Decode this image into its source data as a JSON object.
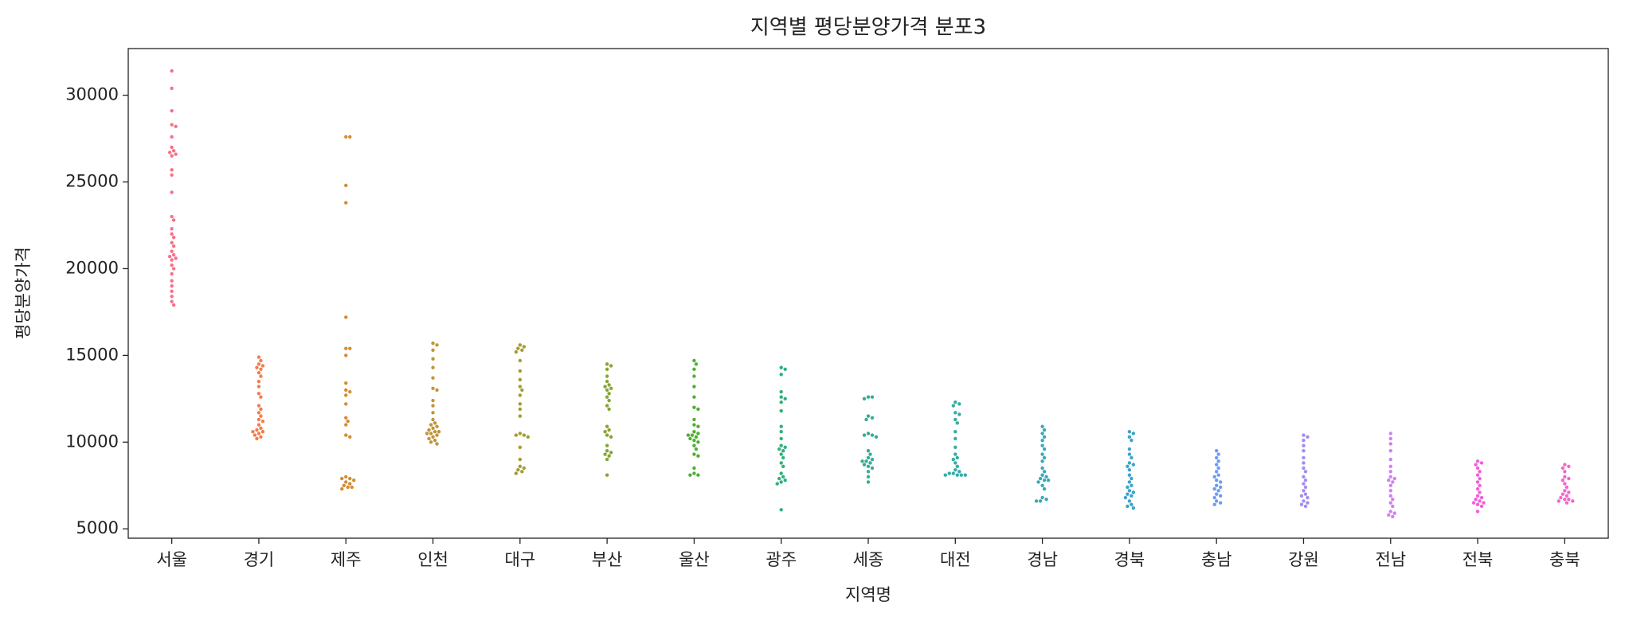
{
  "chart_data": {
    "type": "swarm",
    "title": "지역별 평당분양가격 분포3",
    "x_label": "지역명",
    "y_label": "평당분양가격",
    "categories": [
      "서울",
      "경기",
      "제주",
      "인천",
      "대구",
      "부산",
      "울산",
      "광주",
      "세종",
      "대전",
      "경남",
      "경북",
      "충남",
      "강원",
      "전남",
      "전북",
      "충북"
    ],
    "colors": [
      "#f77189",
      "#f27d4a",
      "#d58c32",
      "#c0953a",
      "#a59c31",
      "#86a531",
      "#4fb031",
      "#33b07a",
      "#35ad95",
      "#36ada4",
      "#38a9b9",
      "#3ba3ce",
      "#6e9bf4",
      "#a48cf4",
      "#d27ff0",
      "#f15fd8",
      "#f565cc"
    ],
    "values": [
      [
        31400,
        30400,
        29100,
        28300,
        28200,
        27600,
        27000,
        26800,
        26700,
        26600,
        26500,
        25700,
        25400,
        24400,
        23000,
        22800,
        22300,
        22000,
        21800,
        21500,
        21300,
        21000,
        20800,
        20700,
        20600,
        20500,
        20200,
        20000,
        19700,
        19300,
        19000,
        18700,
        18400,
        18100,
        17900
      ],
      [
        14900,
        14700,
        14500,
        14400,
        14300,
        14200,
        14000,
        13800,
        13500,
        13200,
        12800,
        12600,
        12100,
        11900,
        11700,
        11500,
        11300,
        11200,
        11000,
        10800,
        10700,
        10600,
        10600,
        10500,
        10400,
        10300,
        10200
      ],
      [
        27600,
        27600,
        24800,
        23800,
        17200,
        15400,
        15400,
        15000,
        13400,
        13000,
        12900,
        12700,
        12200,
        11400,
        11200,
        11000,
        10400,
        10300,
        8000,
        7900,
        7900,
        7800,
        7700,
        7600,
        7500,
        7400,
        7400,
        7300
      ],
      [
        15700,
        15600,
        15300,
        14800,
        14300,
        13700,
        13100,
        13000,
        12400,
        12100,
        11700,
        11300,
        11100,
        11000,
        10900,
        10800,
        10700,
        10600,
        10600,
        10500,
        10500,
        10400,
        10300,
        10200,
        10100,
        10000,
        9900
      ],
      [
        15600,
        15500,
        15400,
        15300,
        15200,
        14700,
        14100,
        13600,
        13200,
        13000,
        12700,
        12200,
        11900,
        11500,
        10500,
        10400,
        10400,
        10300,
        9700,
        9000,
        8600,
        8500,
        8400,
        8300,
        8200
      ],
      [
        14500,
        14400,
        14200,
        13800,
        13500,
        13300,
        13200,
        13100,
        13000,
        12800,
        12600,
        12400,
        12100,
        11900,
        10900,
        10700,
        10600,
        10400,
        10300,
        9800,
        9500,
        9400,
        9300,
        9200,
        9000,
        8100
      ],
      [
        14700,
        14500,
        14200,
        13800,
        13200,
        12600,
        12000,
        11900,
        11300,
        11000,
        10900,
        10600,
        10500,
        10400,
        10400,
        10300,
        10200,
        10100,
        10000,
        9800,
        9600,
        9300,
        9200,
        8500,
        8200,
        8100,
        8100
      ],
      [
        14300,
        14200,
        13900,
        12900,
        12600,
        12500,
        12300,
        11800,
        10900,
        10600,
        10200,
        9800,
        9700,
        9600,
        9500,
        9300,
        9100,
        8800,
        8600,
        8200,
        8000,
        7900,
        7800,
        7700,
        7600,
        6100
      ],
      [
        12600,
        12600,
        12500,
        11500,
        11400,
        11300,
        10500,
        10400,
        10400,
        10300,
        9500,
        9300,
        9100,
        9000,
        8900,
        8900,
        8800,
        8700,
        8600,
        8500,
        8300,
        8000,
        7700
      ],
      [
        12300,
        12200,
        12100,
        11700,
        11600,
        11300,
        11100,
        10600,
        10200,
        9700,
        9300,
        9100,
        9000,
        8800,
        8600,
        8400,
        8300,
        8200,
        8200,
        8100,
        8100,
        8100,
        8100
      ],
      [
        10900,
        10700,
        10500,
        10300,
        10100,
        9800,
        9600,
        9300,
        9100,
        8900,
        8500,
        8300,
        8100,
        8000,
        7900,
        7800,
        7800,
        7700,
        7500,
        7300,
        6800,
        6700,
        6600,
        6600
      ],
      [
        10600,
        10500,
        10300,
        10100,
        9600,
        9300,
        9100,
        8800,
        8700,
        8600,
        8400,
        8100,
        7900,
        7700,
        7500,
        7400,
        7200,
        7100,
        7000,
        6900,
        6800,
        6600,
        6400,
        6300,
        6200
      ],
      [
        9500,
        9300,
        9100,
        8900,
        8700,
        8500,
        8300,
        8100,
        8000,
        7800,
        7700,
        7500,
        7400,
        7300,
        7200,
        7000,
        6900,
        6800,
        6600,
        6500,
        6400
      ],
      [
        10400,
        10300,
        10100,
        9800,
        9500,
        9100,
        8800,
        8500,
        8300,
        8000,
        7800,
        7600,
        7400,
        7200,
        7000,
        6900,
        6800,
        6600,
        6500,
        6400,
        6300
      ],
      [
        10500,
        10200,
        9900,
        9500,
        9000,
        8600,
        8300,
        8000,
        7900,
        7800,
        7700,
        7500,
        7200,
        6900,
        6700,
        6500,
        6300,
        6000,
        5900,
        5800,
        5700
      ],
      [
        8900,
        8800,
        8700,
        8500,
        8300,
        8100,
        7900,
        7700,
        7500,
        7300,
        7100,
        6900,
        6800,
        6700,
        6600,
        6500,
        6500,
        6400,
        6300,
        6000
      ],
      [
        8700,
        8600,
        8500,
        8300,
        8000,
        7900,
        7800,
        7600,
        7400,
        7200,
        7100,
        7000,
        6900,
        6800,
        6700,
        6700,
        6600,
        6600,
        6500
      ]
    ],
    "ylim": [
      4460,
      32690
    ],
    "yticks": [
      5000,
      10000,
      15000,
      20000,
      25000,
      30000
    ]
  }
}
